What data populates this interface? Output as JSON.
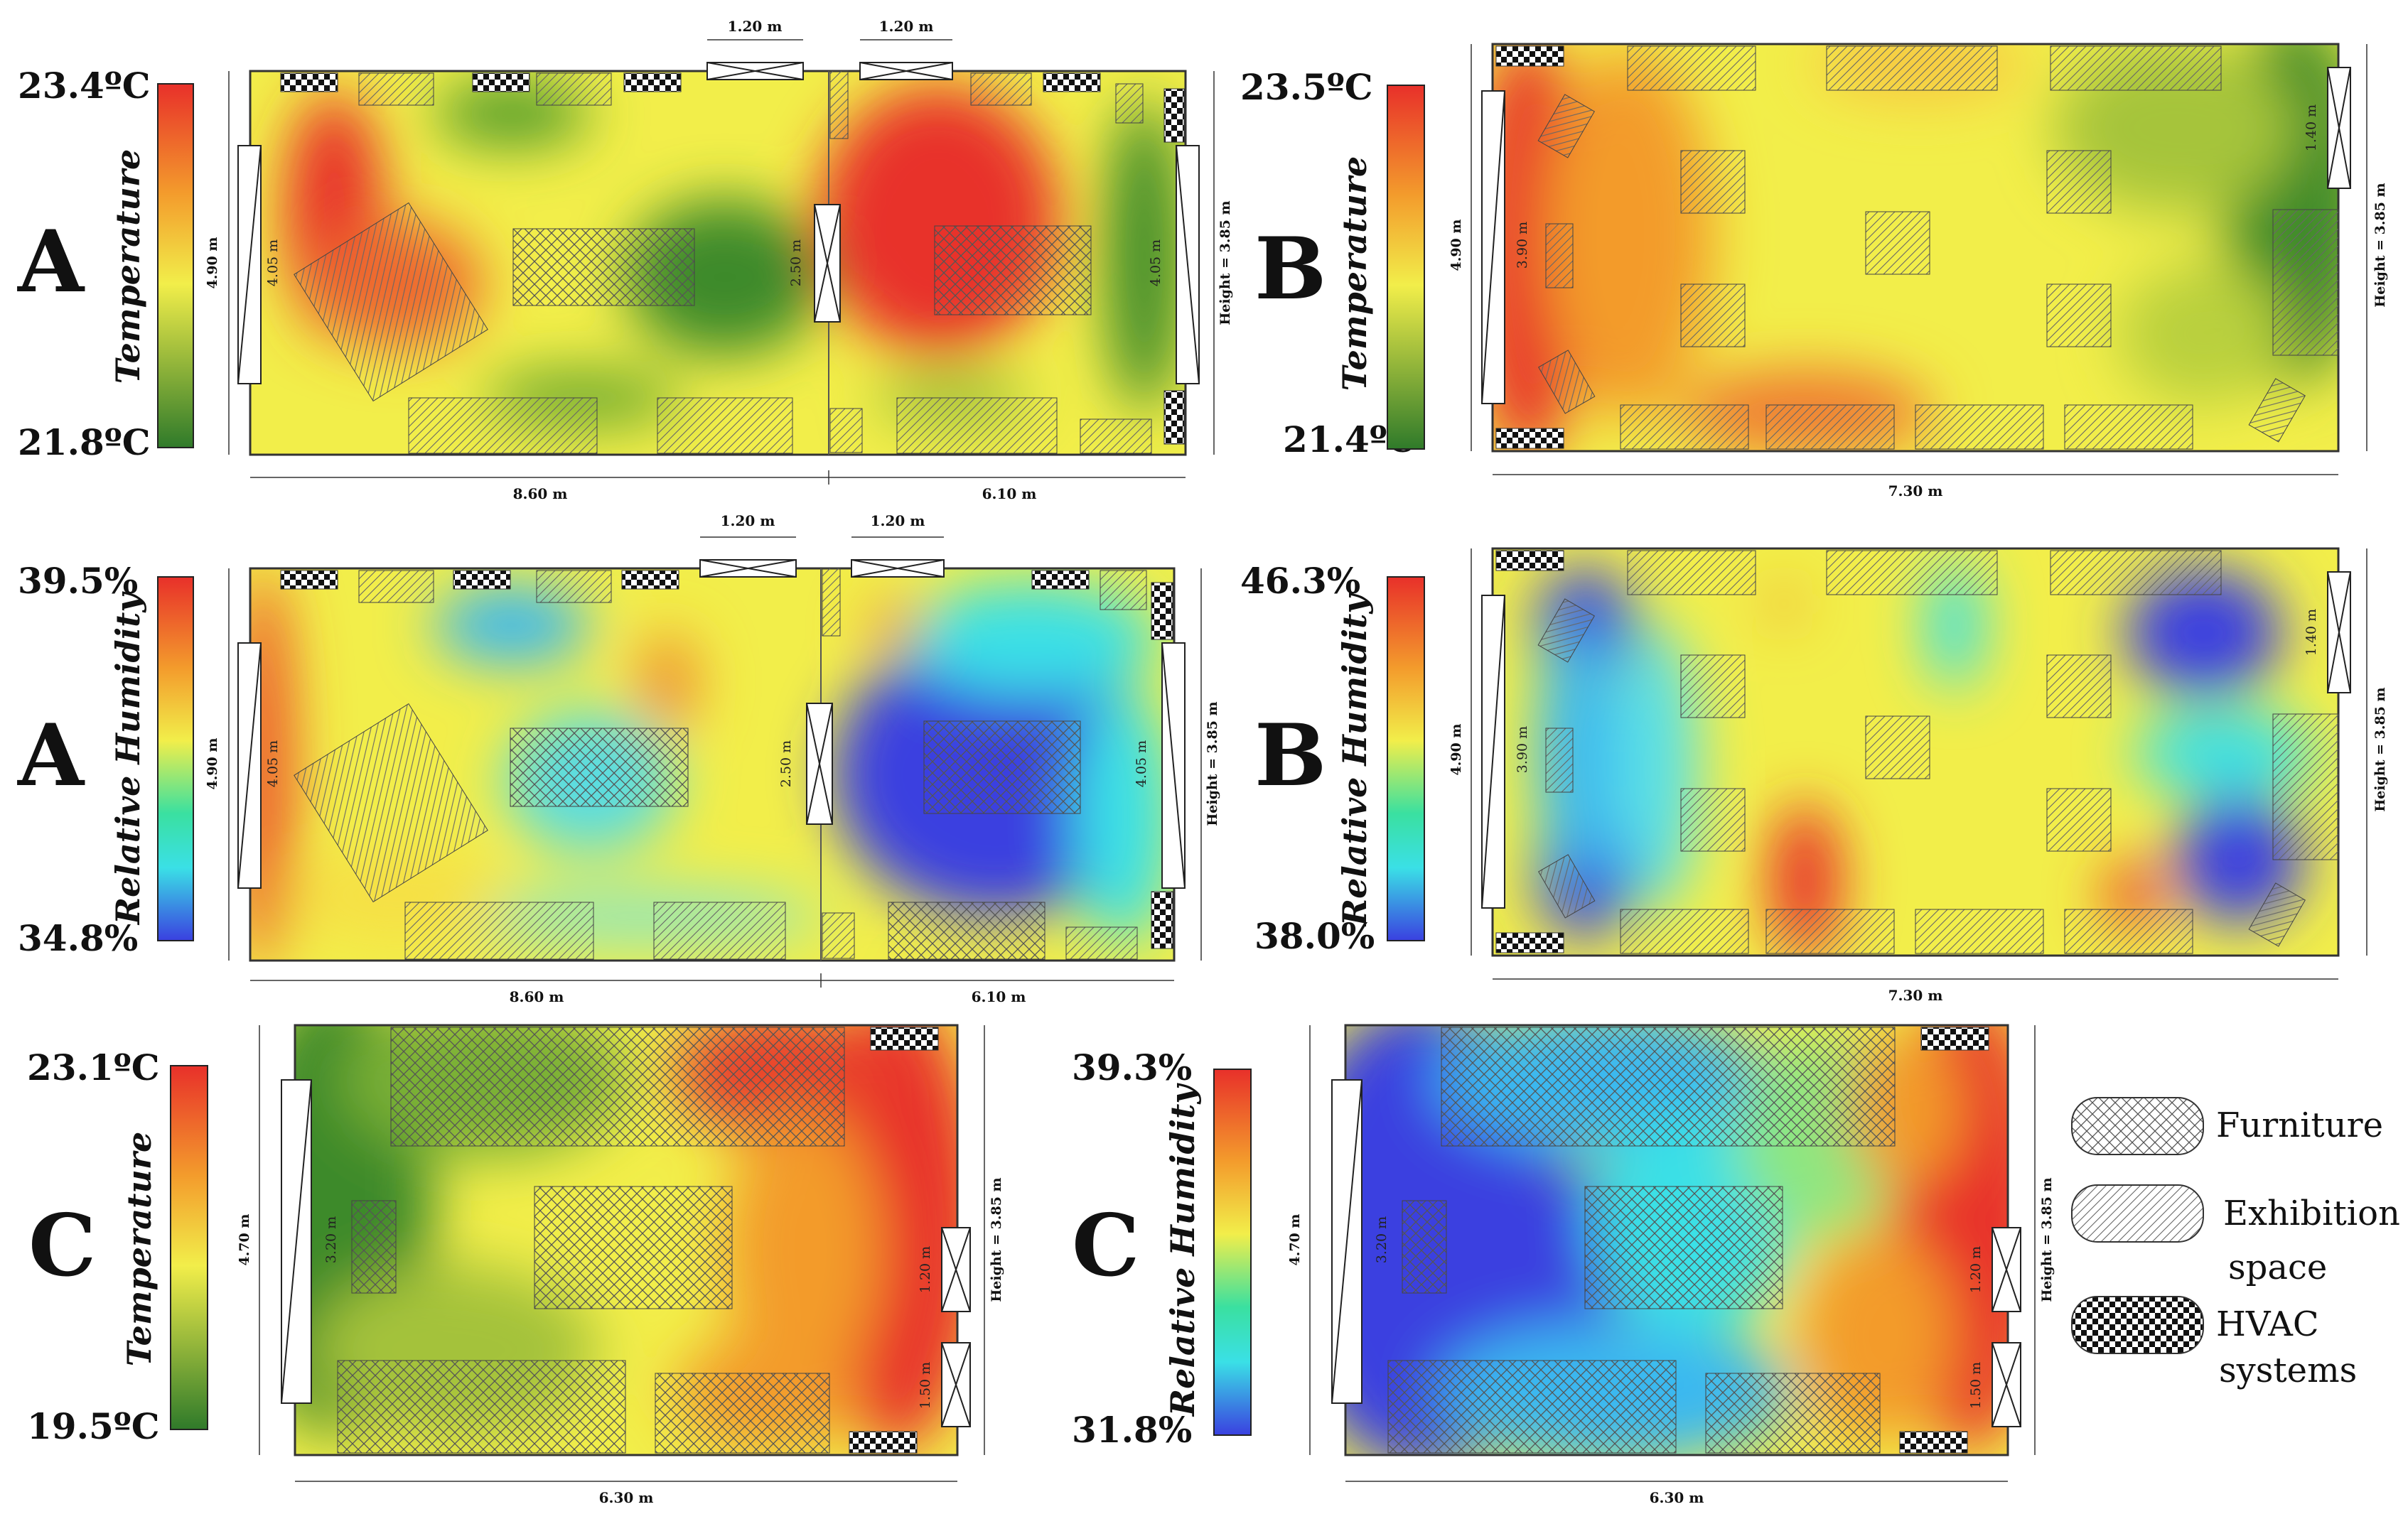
{
  "panels": {
    "a_temp": {
      "letter": "A",
      "quantity": "Temperature",
      "max": "23.4ºC",
      "min": "21.8ºC",
      "w_left": "8.60  m",
      "w_right": "6.10 m",
      "door1": "1.20 m",
      "door2": "1.20 m",
      "h_total": "4.90 m",
      "h_left": "4.05 m",
      "h_mid": "2.50 m",
      "h_right": "4.05 m",
      "ceiling": "Height = 3.85 m"
    },
    "b_temp": {
      "letter": "B",
      "quantity": "Temperature",
      "max": "23.5ºC",
      "min": "21.4ºC",
      "w": "7.30 m",
      "h_total": "4.90 m",
      "h_left": "3.90 m",
      "h_right": "1.40 m",
      "ceiling": "Height = 3.85 m"
    },
    "a_rh": {
      "letter": "A",
      "quantity": "Relative Humidity",
      "max": "39.5%",
      "min": "34.8%",
      "w_left": "8.60  m",
      "w_right": "6.10 m",
      "door1": "1.20 m",
      "door2": "1.20 m",
      "h_total": "4.90 m",
      "h_left": "4.05 m",
      "h_mid": "2.50 m",
      "h_right": "4.05 m",
      "ceiling": "Height = 3.85 m"
    },
    "b_rh": {
      "letter": "B",
      "quantity": "Relative Humidity",
      "max": "46.3%",
      "min": "38.0%",
      "w": "7.30 m",
      "h_total": "4.90 m",
      "h_left": "3.90 m",
      "h_right": "1.40 m",
      "ceiling": "Height = 3.85 m"
    },
    "c_temp": {
      "letter": "C",
      "quantity": "Temperature",
      "max": "23.1ºC",
      "min": "19.5ºC",
      "w": "6.30 m",
      "h_total": "4.70 m",
      "h_left": "3.20 m",
      "h_r1": "1.20 m",
      "h_r2": "1.50 m",
      "ceiling": "Height = 3.85 m"
    },
    "c_rh": {
      "letter": "C",
      "quantity": "Relative Humidity",
      "max": "39.3%",
      "min": "31.8%",
      "w": "6.30 m",
      "h_total": "4.70 m",
      "h_left": "3.20 m",
      "h_r1": "1.20 m",
      "h_r2": "1.50 m",
      "ceiling": "Height = 3.85 m"
    }
  },
  "legend": {
    "furniture": "Furniture",
    "exhibition_1": "Exhibition",
    "exhibition_2": "space",
    "hvac_1": "HVAC",
    "hvac_2": "systems"
  },
  "colors": {
    "hot": "#e8302a",
    "orange": "#f39b2c",
    "yellow": "#f2ee4a",
    "green": "#3d8a2c",
    "cyan": "#3ae0e6",
    "blue": "#3a40e0"
  }
}
